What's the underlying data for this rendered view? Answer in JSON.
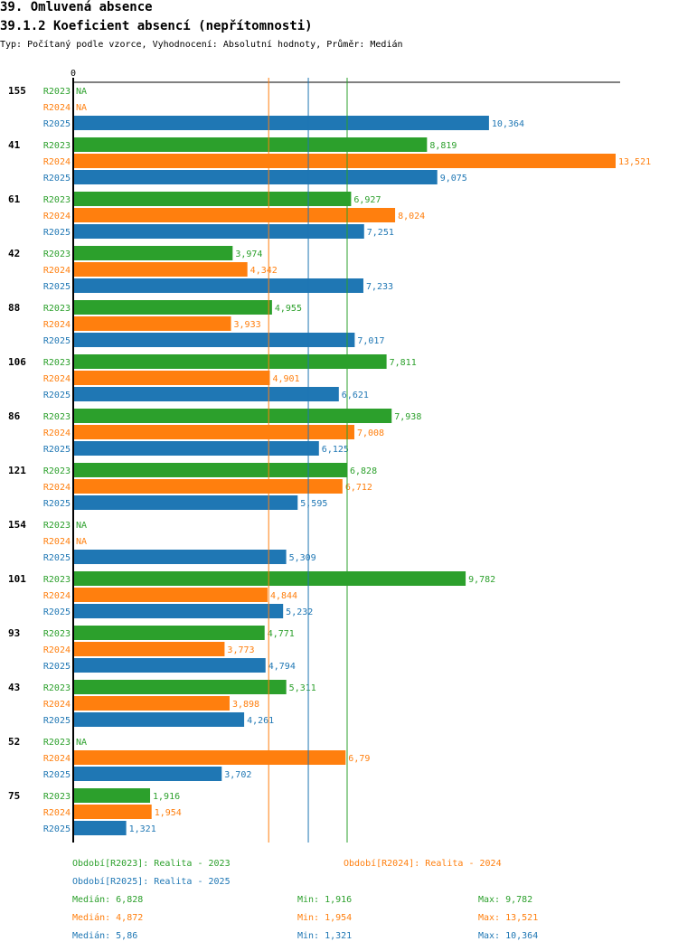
{
  "header": {
    "title": "39. Omluvená absence",
    "subtitle": "39.1.2 Koeficient absencí (nepřítomnosti)",
    "info": "Typ: Počítaný podle vzorce, Vyhodnocení: Absolutní hodnoty, Průměr: Medián"
  },
  "colors": {
    "R2023": "#2ca02c",
    "R2024": "#ff7f0e",
    "R2025": "#1f77b4",
    "axis": "#000000"
  },
  "chart_data": {
    "type": "bar",
    "orientation": "horizontal",
    "title": "39.1.2 Koeficient absencí (nepřítomnosti)",
    "xlim": [
      0,
      13.521
    ],
    "x_tick_labels": [
      "0"
    ],
    "series_names": [
      "R2023",
      "R2024",
      "R2025"
    ],
    "categories": [
      "155",
      "41",
      "61",
      "42",
      "88",
      "106",
      "86",
      "121",
      "154",
      "101",
      "93",
      "43",
      "52",
      "75"
    ],
    "series": [
      {
        "name": "R2023",
        "values": [
          null,
          8.819,
          6.927,
          3.974,
          4.955,
          7.811,
          7.938,
          6.828,
          null,
          9.782,
          4.771,
          5.311,
          null,
          1.916
        ],
        "labels": [
          "NA",
          "8,819",
          "6,927",
          "3,974",
          "4,955",
          "7,811",
          "7,938",
          "6,828",
          "NA",
          "9,782",
          "4,771",
          "5,311",
          "NA",
          "1,916"
        ]
      },
      {
        "name": "R2024",
        "values": [
          null,
          13.521,
          8.024,
          4.342,
          3.933,
          4.901,
          7.008,
          6.712,
          null,
          4.844,
          3.773,
          3.898,
          6.79,
          1.954
        ],
        "labels": [
          "NA",
          "13,521",
          "8,024",
          "4,342",
          "3,933",
          "4,901",
          "7,008",
          "6,712",
          "NA",
          "4,844",
          "3,773",
          "3,898",
          "6,79",
          "1,954"
        ]
      },
      {
        "name": "R2025",
        "values": [
          10.364,
          9.075,
          7.251,
          7.233,
          7.017,
          6.621,
          6.125,
          5.595,
          5.309,
          5.232,
          4.794,
          4.261,
          3.702,
          1.321
        ],
        "labels": [
          "10,364",
          "9,075",
          "7,251",
          "7,233",
          "7,017",
          "6,621",
          "6,125",
          "5,595",
          "5,309",
          "5,232",
          "4,794",
          "4,261",
          "3,702",
          "1,321"
        ]
      }
    ],
    "median_lines": [
      {
        "series": "R2023",
        "value": 6.828
      },
      {
        "series": "R2024",
        "value": 4.872
      },
      {
        "series": "R2025",
        "value": 5.86
      }
    ],
    "legend": {
      "placement": "bottom",
      "periods": [
        {
          "series": "R2023",
          "text": "Období[R2023]: Realita - 2023"
        },
        {
          "series": "R2024",
          "text": "Období[R2024]: Realita - 2024"
        },
        {
          "series": "R2025",
          "text": "Období[R2025]: Realita - 2025"
        }
      ],
      "stats": [
        {
          "series": "R2023",
          "median": "Medián: 6,828",
          "min": "Min: 1,916",
          "max": "Max: 9,782"
        },
        {
          "series": "R2024",
          "median": "Medián: 4,872",
          "min": "Min: 1,954",
          "max": "Max: 13,521"
        },
        {
          "series": "R2025",
          "median": "Medián: 5,86",
          "min": "Min: 1,321",
          "max": "Max: 10,364"
        }
      ]
    }
  }
}
